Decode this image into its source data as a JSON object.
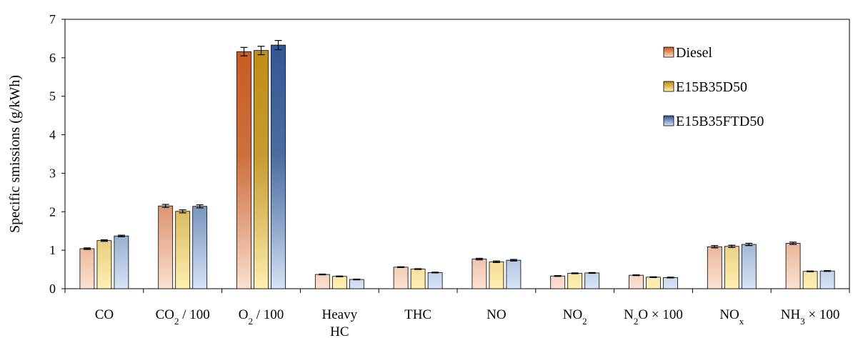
{
  "chart_data": {
    "type": "bar",
    "ylabel": "Specific smissions (g/kWh)",
    "xlabel": "",
    "ylim": [
      0,
      7
    ],
    "yticks": [
      "0",
      "1",
      "2",
      "3",
      "4",
      "5",
      "6",
      "7"
    ],
    "grid": false,
    "legend_position": "top-right",
    "error_bars": true,
    "categories": [
      {
        "lines": [
          [
            {
              "t": "CO"
            }
          ]
        ]
      },
      {
        "lines": [
          [
            {
              "t": "CO"
            },
            {
              "t": "2",
              "sub": true
            },
            {
              "t": " / 100"
            }
          ]
        ]
      },
      {
        "lines": [
          [
            {
              "t": "O"
            },
            {
              "t": "2",
              "sub": true
            },
            {
              "t": " / 100"
            }
          ]
        ]
      },
      {
        "lines": [
          [
            {
              "t": "Heavy"
            }
          ],
          [
            {
              "t": "HC"
            }
          ]
        ]
      },
      {
        "lines": [
          [
            {
              "t": "THC"
            }
          ]
        ]
      },
      {
        "lines": [
          [
            {
              "t": "NO"
            }
          ]
        ]
      },
      {
        "lines": [
          [
            {
              "t": "NO"
            },
            {
              "t": "2",
              "sub": true
            }
          ]
        ]
      },
      {
        "lines": [
          [
            {
              "t": "N"
            },
            {
              "t": "2",
              "sub": true
            },
            {
              "t": "O × 100"
            }
          ]
        ]
      },
      {
        "lines": [
          [
            {
              "t": "NO"
            },
            {
              "t": "x",
              "sub": true
            }
          ]
        ]
      },
      {
        "lines": [
          [
            {
              "t": "NH"
            },
            {
              "t": "3",
              "sub": true
            },
            {
              "t": " × 100"
            }
          ]
        ]
      }
    ],
    "series": [
      {
        "name": "Diesel",
        "color_top": "#c4561b",
        "color_bottom": "#fbe1d2",
        "values": [
          1.04,
          2.15,
          6.16,
          0.37,
          0.56,
          0.77,
          0.33,
          0.35,
          1.09,
          1.18
        ],
        "errors": [
          0.02,
          0.04,
          0.11,
          0.01,
          0.01,
          0.02,
          0.01,
          0.01,
          0.03,
          0.03
        ]
      },
      {
        "name": "E15B35D50",
        "color_top": "#bc8a0c",
        "color_bottom": "#fff0b3",
        "values": [
          1.25,
          2.01,
          6.19,
          0.32,
          0.51,
          0.7,
          0.4,
          0.3,
          1.1,
          0.45
        ],
        "errors": [
          0.02,
          0.04,
          0.11,
          0.01,
          0.01,
          0.02,
          0.01,
          0.01,
          0.03,
          0.01
        ]
      },
      {
        "name": "E15B35FTD50",
        "color_top": "#2c5290",
        "color_bottom": "#d6e4f6",
        "values": [
          1.37,
          2.14,
          6.33,
          0.24,
          0.42,
          0.74,
          0.41,
          0.29,
          1.15,
          0.46
        ],
        "errors": [
          0.02,
          0.04,
          0.12,
          0.01,
          0.01,
          0.02,
          0.01,
          0.01,
          0.03,
          0.01
        ]
      }
    ]
  }
}
